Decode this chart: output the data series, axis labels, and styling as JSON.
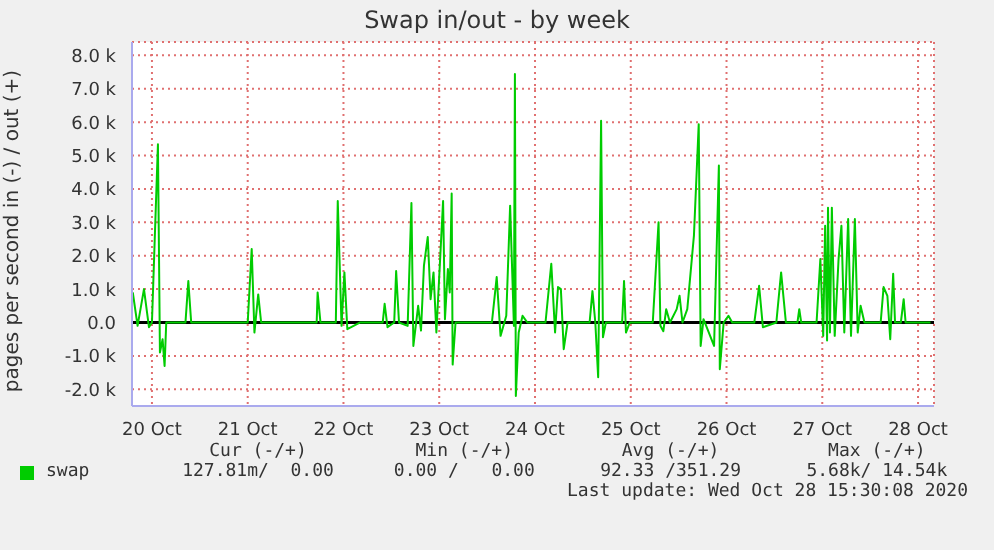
{
  "chart_data": {
    "type": "line",
    "title": "Swap in/out - by week",
    "ylabel": "pages per second in (-) / out (+)",
    "x": [
      "2020-10-19T19:12",
      "2020-10-19T20:24",
      "2020-10-19T22:00",
      "2020-10-19T23:15",
      "2020-10-20T00:00",
      "2020-10-20T01:30",
      "2020-10-20T02:00",
      "2020-10-20T02:40",
      "2020-10-20T03:10",
      "2020-10-20T03:35",
      "2020-10-20T08:24",
      "2020-10-20T09:07",
      "2020-10-20T09:50",
      "2020-10-21T00:00",
      "2020-10-21T01:00",
      "2020-10-21T01:41",
      "2020-10-21T02:38",
      "2020-10-21T03:22",
      "2020-10-21T17:17",
      "2020-10-21T17:31",
      "2020-10-21T18:14",
      "2020-10-21T22:05",
      "2020-10-21T22:34",
      "2020-10-21T23:31",
      "2020-10-22T00:14",
      "2020-10-22T00:58",
      "2020-10-22T04:05",
      "2020-10-22T09:50",
      "2020-10-22T10:19",
      "2020-10-22T11:02",
      "2020-10-22T12:43",
      "2020-10-22T13:12",
      "2020-10-22T13:55",
      "2020-10-22T16:05",
      "2020-10-22T17:02",
      "2020-10-22T17:31",
      "2020-10-22T18:43",
      "2020-10-22T19:26",
      "2020-10-22T20:10",
      "2020-10-22T21:07",
      "2020-10-22T21:50",
      "2020-10-22T22:34",
      "2020-10-22T23:17",
      "2020-10-23T00:58",
      "2020-10-23T01:26",
      "2020-10-23T02:10",
      "2020-10-23T02:38",
      "2020-10-23T03:07",
      "2020-10-23T03:22",
      "2020-10-23T04:05",
      "2020-10-23T13:12",
      "2020-10-23T14:24",
      "2020-10-23T15:22",
      "2020-10-23T16:48",
      "2020-10-23T17:46",
      "2020-10-23T18:43",
      "2020-10-23T18:58",
      "2020-10-23T19:12",
      "2020-10-23T19:55",
      "2020-10-23T20:53",
      "2020-10-23T22:05",
      "2020-10-24T02:38",
      "2020-10-24T04:05",
      "2020-10-24T05:02",
      "2020-10-24T05:46",
      "2020-10-24T06:29",
      "2020-10-24T07:12",
      "2020-10-24T08:10",
      "2020-10-24T13:41",
      "2020-10-24T14:24",
      "2020-10-24T15:07",
      "2020-10-24T15:50",
      "2020-10-24T16:34",
      "2020-10-24T17:02",
      "2020-10-24T17:46",
      "2020-10-24T21:50",
      "2020-10-24T22:19",
      "2020-10-24T22:48",
      "2020-10-24T23:46",
      "2020-10-25T05:31",
      "2020-10-25T06:58",
      "2020-10-25T07:26",
      "2020-10-25T08:10",
      "2020-10-25T08:53",
      "2020-10-25T09:50",
      "2020-10-25T11:31",
      "2020-10-25T12:14",
      "2020-10-25T12:58",
      "2020-10-25T14:10",
      "2020-10-25T15:50",
      "2020-10-25T17:02",
      "2020-10-25T17:31",
      "2020-10-25T18:14",
      "2020-10-25T20:53",
      "2020-10-25T22:05",
      "2020-10-25T22:19",
      "2020-10-25T23:17",
      "2020-10-26T00:29",
      "2020-10-26T01:26",
      "2020-10-26T06:58",
      "2020-10-26T08:10",
      "2020-10-26T09:07",
      "2020-10-26T12:29",
      "2020-10-26T13:41",
      "2020-10-26T14:53",
      "2020-10-26T17:46",
      "2020-10-26T18:14",
      "2020-10-26T18:43",
      "2020-10-26T22:34",
      "2020-10-26T23:31",
      "2020-10-27T00:14",
      "2020-10-27T00:43",
      "2020-10-27T01:12",
      "2020-10-27T01:26",
      "2020-10-27T01:55",
      "2020-10-27T02:24",
      "2020-10-27T03:07",
      "2020-10-27T04:05",
      "2020-10-27T04:48",
      "2020-10-27T05:31",
      "2020-10-27T06:29",
      "2020-10-27T07:12",
      "2020-10-27T08:10",
      "2020-10-27T08:53",
      "2020-10-27T09:36",
      "2020-10-27T10:34",
      "2020-10-27T14:38",
      "2020-10-27T15:22",
      "2020-10-27T16:19",
      "2020-10-27T17:02",
      "2020-10-27T17:46",
      "2020-10-27T18:14",
      "2020-10-27T19:41",
      "2020-10-27T20:24",
      "2020-10-27T20:53",
      "2020-10-28T03:07"
    ],
    "series": [
      {
        "name": "swap",
        "color": "#00cc00",
        "values": [
          900,
          -100,
          1000,
          -140,
          0,
          5340,
          -900,
          -500,
          -1300,
          0,
          0,
          1240,
          0,
          0,
          2200,
          -300,
          840,
          0,
          0,
          900,
          0,
          0,
          3640,
          -100,
          1500,
          -200,
          0,
          0,
          560,
          -140,
          0,
          1540,
          0,
          -100,
          3580,
          -700,
          500,
          -240,
          1700,
          2560,
          700,
          1500,
          -300,
          3640,
          100,
          1600,
          900,
          3860,
          -1260,
          0,
          0,
          1360,
          -400,
          200,
          3500,
          -100,
          7440,
          -2200,
          -300,
          200,
          0,
          0,
          1760,
          -300,
          1060,
          1000,
          -800,
          0,
          0,
          940,
          0,
          -1640,
          6040,
          -440,
          0,
          0,
          1240,
          -300,
          0,
          0,
          3000,
          -100,
          -260,
          400,
          0,
          400,
          800,
          0,
          400,
          2600,
          5940,
          -700,
          100,
          -700,
          4700,
          -1400,
          0,
          200,
          0,
          0,
          1100,
          -140,
          0,
          1500,
          0,
          0,
          400,
          0,
          0,
          1900,
          -400,
          2900,
          -540,
          3440,
          -300,
          3440,
          -400,
          1900,
          2900,
          -300,
          3100,
          -400,
          3100,
          -300,
          500,
          0,
          0,
          1060,
          800,
          -500,
          1460,
          0,
          0,
          700,
          0,
          0
        ]
      }
    ],
    "xlim": [
      "2020-10-19T19:00",
      "2020-10-28T04:00"
    ],
    "xticks": [
      {
        "value": "2020-10-20",
        "label": "20 Oct"
      },
      {
        "value": "2020-10-21",
        "label": "21 Oct"
      },
      {
        "value": "2020-10-22",
        "label": "22 Oct"
      },
      {
        "value": "2020-10-23",
        "label": "23 Oct"
      },
      {
        "value": "2020-10-24",
        "label": "24 Oct"
      },
      {
        "value": "2020-10-25",
        "label": "25 Oct"
      },
      {
        "value": "2020-10-26",
        "label": "26 Oct"
      },
      {
        "value": "2020-10-27",
        "label": "27 Oct"
      },
      {
        "value": "2020-10-28",
        "label": "28 Oct"
      }
    ],
    "ylim": [
      -2500,
      8400
    ],
    "yticks": [
      {
        "value": -2000,
        "label": "-2.0 k"
      },
      {
        "value": -1000,
        "label": "-1.0 k"
      },
      {
        "value": 0,
        "label": "0.0"
      },
      {
        "value": 1000,
        "label": "1.0 k"
      },
      {
        "value": 2000,
        "label": "2.0 k"
      },
      {
        "value": 3000,
        "label": "3.0 k"
      },
      {
        "value": 4000,
        "label": "4.0 k"
      },
      {
        "value": 5000,
        "label": "5.0 k"
      },
      {
        "value": 6000,
        "label": "6.0 k"
      },
      {
        "value": 7000,
        "label": "7.0 k"
      },
      {
        "value": 8000,
        "label": "8.0 k"
      }
    ],
    "ref_lines": [
      {
        "axis": "y",
        "value": 0,
        "color": "#000000"
      }
    ],
    "grid": true,
    "legend": "bottom",
    "marker": "none",
    "line_style": "solid",
    "annotations": [
      "Cur (-/+)",
      "Min (-/+)",
      "Avg (-/+)",
      "Max (-/+)",
      "127.81m/  0.00",
      "0.00 /   0.00",
      "92.33 /351.29",
      "5.68k/ 14.54k",
      "Last update: Wed Oct 28 15:30:08 2020"
    ]
  }
}
